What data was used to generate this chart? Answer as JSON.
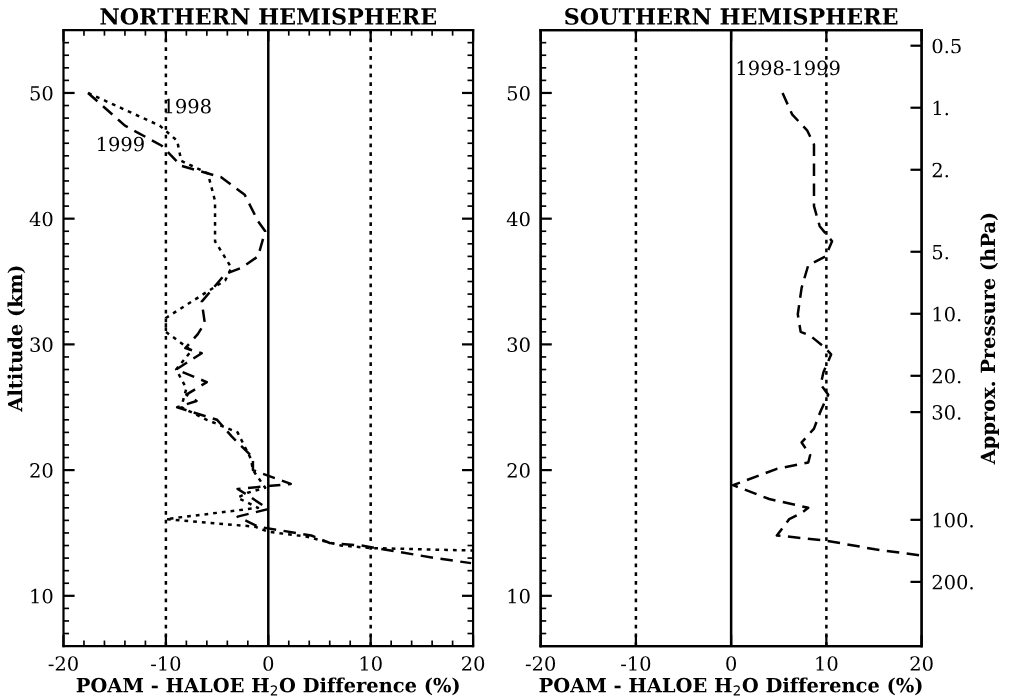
{
  "chart_data": [
    {
      "type": "line",
      "title": "NORTHERN HEMISPHERE",
      "xlabel": "POAM - HALOE H$_{2}$O Difference (%)",
      "ylabel": "Altitude (km)",
      "xlim": [
        -20,
        20
      ],
      "xticks": [
        -20,
        -10,
        0,
        10,
        20
      ],
      "ylim": [
        6,
        55
      ],
      "yticks": [
        10,
        20,
        30,
        40,
        50
      ],
      "grid": false,
      "ref_lines": [
        {
          "axis": "x",
          "value": -10,
          "line_style": "dotted",
          "color": "#000000"
        },
        {
          "axis": "x",
          "value": 0,
          "line_style": "solid",
          "color": "#000000"
        },
        {
          "axis": "x",
          "value": 10,
          "line_style": "dotted",
          "color": "#000000"
        }
      ],
      "series": [
        {
          "name": "1998",
          "color": "#000000",
          "line_style": "dotted",
          "x": [
            -17.6,
            -10.6,
            -8.9,
            -8.5,
            -5.9,
            -5.2,
            -5.2,
            -3.6,
            -4.2,
            -10.0,
            -10.0,
            -7.5,
            -9.0,
            -8.0,
            -8.5,
            -6.0,
            -3.0,
            -1.7,
            -1.5,
            -0.3,
            -2.0,
            -3.0,
            -1.0,
            -10.0,
            -1.3,
            0.0,
            3.8,
            7.1,
            10.0,
            20.0
          ],
          "values": [
            50,
            47.4,
            46.2,
            44.6,
            43.6,
            41.4,
            38.2,
            36.1,
            35.1,
            32.1,
            31.0,
            29.5,
            28.0,
            26.5,
            25.0,
            24.0,
            23.0,
            20.9,
            20.0,
            18.6,
            18.2,
            17.8,
            17.0,
            16.1,
            15.5,
            15.1,
            14.7,
            14.0,
            13.8,
            13.6
          ]
        },
        {
          "name": "1999",
          "color": "#000000",
          "line_style": "dashed",
          "x": [
            -17.6,
            -14.0,
            -10.4,
            -8.5,
            -4.6,
            -2.3,
            -1.0,
            -0.3,
            -1.0,
            -2.6,
            -4.2,
            -6.5,
            -6.2,
            -6.9,
            -8.1,
            -6.5,
            -9.0,
            -6.0,
            -8.0,
            -7.0,
            -8.9,
            -5.0,
            -3.6,
            -1.5,
            -1.5,
            2.2,
            -3.0,
            -2.0,
            0.0,
            -3.0,
            -1.0,
            4.2,
            6.0,
            9.1,
            16.3,
            19.8
          ],
          "values": [
            50,
            47.4,
            45.8,
            44.2,
            43.3,
            41.9,
            39.8,
            39.0,
            37.0,
            36.1,
            35.6,
            33.4,
            31.7,
            30.8,
            29.7,
            29.3,
            28.0,
            27.0,
            26.0,
            25.5,
            25.0,
            24.0,
            22.7,
            21.0,
            20.0,
            18.9,
            18.5,
            18.0,
            16.9,
            16.3,
            15.5,
            14.8,
            14.2,
            14.0,
            13.0,
            12.6
          ]
        }
      ]
    },
    {
      "type": "line",
      "title": "SOUTHERN HEMISPHERE",
      "xlabel": "POAM - HALOE H$_{2}$O Difference (%)",
      "y2label": "Approx. Pressure (hPa)",
      "xlim": [
        -20,
        20
      ],
      "xticks": [
        -20,
        -10,
        0,
        10,
        20
      ],
      "ylim": [
        6,
        55
      ],
      "yticks": [
        10,
        20,
        30,
        40,
        50
      ],
      "grid": false,
      "log": "y2",
      "y2lim": [
        410,
        0.42
      ],
      "y2ticks": [
        0.5,
        {
          "value": 1,
          "label": "1."
        },
        {
          "value": 2,
          "label": "2."
        },
        {
          "value": 5,
          "label": "5."
        },
        {
          "value": 10,
          "label": "10."
        },
        {
          "value": 20,
          "label": "20."
        },
        {
          "value": 30,
          "label": "30."
        },
        {
          "value": 100,
          "label": "100."
        },
        {
          "value": 200,
          "label": "200."
        }
      ],
      "ref_lines": [
        {
          "axis": "x",
          "value": -10,
          "line_style": "dotted",
          "color": "#000000"
        },
        {
          "axis": "x",
          "value": 0,
          "line_style": "solid",
          "color": "#000000"
        },
        {
          "axis": "x",
          "value": 10,
          "line_style": "dotted",
          "color": "#000000"
        }
      ],
      "series": [
        {
          "name": "1998-1999",
          "color": "#000000",
          "line_style": "dashed",
          "x": [
            5.4,
            6.4,
            8.0,
            8.7,
            8.7,
            9.3,
            10.6,
            9.9,
            8.1,
            7.4,
            7.0,
            7.3,
            8.3,
            9.9,
            10.5,
            9.7,
            9.4,
            10.2,
            9.4,
            8.7,
            7.4,
            8.3,
            8.1,
            4.8,
            0.2,
            4.0,
            8.1,
            7.4,
            6.1,
            4.8,
            9.9,
            15.1,
            20.0
          ],
          "values": [
            50,
            48.3,
            47.0,
            45.9,
            41.0,
            39.4,
            38.2,
            37.0,
            36.3,
            34.5,
            32.4,
            31.0,
            30.7,
            29.7,
            29.2,
            27.8,
            26.8,
            26.0,
            24.7,
            23.3,
            22.2,
            21.2,
            20.6,
            20.1,
            18.8,
            17.7,
            17.0,
            16.6,
            16.1,
            14.8,
            14.4,
            13.7,
            13.2
          ]
        }
      ]
    }
  ]
}
